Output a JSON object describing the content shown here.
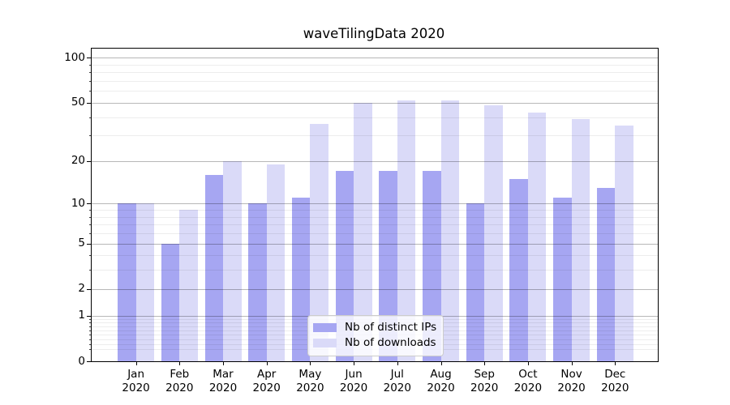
{
  "chart_data": {
    "type": "bar",
    "title": "waveTilingData 2020",
    "categories": [
      "Jan",
      "Feb",
      "Mar",
      "Apr",
      "May",
      "Jun",
      "Jul",
      "Aug",
      "Sep",
      "Oct",
      "Nov",
      "Dec"
    ],
    "category_year": "2020",
    "series": [
      {
        "name": "Nb of distinct IPs",
        "color": "#a6a6f2",
        "values": [
          10,
          5,
          16,
          10,
          11,
          17,
          17,
          17,
          10,
          15,
          11,
          13
        ]
      },
      {
        "name": "Nb of downloads",
        "color": "#dadaf8",
        "values": [
          10,
          9,
          20,
          19,
          36,
          50,
          52,
          52,
          48,
          43,
          39,
          35
        ]
      }
    ],
    "yscale": "log10(1+x)",
    "ylim": [
      0,
      115
    ],
    "yticks_major": [
      0,
      1,
      2,
      5,
      10,
      20,
      50,
      100
    ],
    "yticks_minor": [
      0.2,
      0.3,
      0.4,
      0.5,
      0.6,
      0.7,
      0.8,
      0.9,
      3,
      4,
      6,
      7,
      8,
      9,
      30,
      40,
      60,
      70,
      80,
      90
    ],
    "grid": "horizontal major+minor, drawn over bars",
    "legend_position": "inside lower-center"
  }
}
